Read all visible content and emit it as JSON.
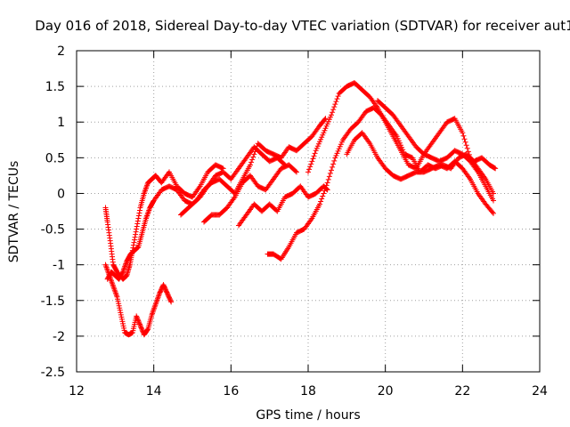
{
  "chart_data": {
    "type": "scatter",
    "title": "Day 016 of 2018, Sidereal Day-to-day VTEC variation (SDTVAR) for receiver aut1",
    "xlabel": "GPS time / hours",
    "ylabel": "SDTVAR / TECUs",
    "xlim": [
      12,
      24
    ],
    "ylim": [
      -2.5,
      2
    ],
    "xticks": [
      "12",
      "14",
      "16",
      "18",
      "20",
      "22",
      "24"
    ],
    "yticks": [
      "2",
      "1.5",
      "1",
      "0.5",
      "0",
      "-0.5",
      "-1",
      "-1.5",
      "-2",
      "-2.5"
    ],
    "grid": true,
    "legend": "none",
    "marker": "+",
    "color": "#ff0000",
    "series": [
      {
        "name": "satellite track A",
        "x": [
          12.75,
          12.8,
          12.88,
          12.95,
          13.05,
          13.2,
          13.3,
          13.38,
          13.45,
          13.55,
          13.65,
          13.75,
          13.85,
          13.95,
          14.05,
          14.2,
          14.4,
          14.6,
          14.8,
          15.0,
          15.2,
          15.4,
          15.6,
          15.8
        ],
        "y": [
          -0.2,
          -0.4,
          -0.7,
          -1.0,
          -1.1,
          -1.2,
          -1.15,
          -1.0,
          -0.8,
          -0.5,
          -0.2,
          0.0,
          0.15,
          0.2,
          0.25,
          0.15,
          0.3,
          0.1,
          0.0,
          -0.05,
          0.1,
          0.3,
          0.4,
          0.35
        ]
      },
      {
        "name": "satellite track B",
        "x": [
          12.75,
          12.85,
          12.95,
          13.05,
          13.15,
          13.25,
          13.35,
          13.45,
          13.55,
          13.65,
          13.75,
          13.85,
          13.95,
          14.05,
          14.15,
          14.25,
          14.35,
          14.45
        ],
        "y": [
          -1.0,
          -1.15,
          -1.3,
          -1.45,
          -1.7,
          -1.95,
          -1.98,
          -1.95,
          -1.72,
          -1.85,
          -1.98,
          -1.9,
          -1.7,
          -1.55,
          -1.4,
          -1.28,
          -1.4,
          -1.52
        ]
      },
      {
        "name": "satellite track C",
        "x": [
          12.8,
          12.9,
          13.0,
          13.1,
          13.2,
          13.3,
          13.4,
          13.5,
          13.6,
          13.7,
          13.8,
          13.9,
          14.0,
          14.2,
          14.4,
          14.6,
          14.8,
          15.0,
          15.2,
          15.4,
          15.6,
          15.8,
          16.0,
          16.2,
          16.4,
          16.6,
          16.8,
          17.0,
          17.2,
          17.4
        ],
        "y": [
          -1.2,
          -1.1,
          -1.15,
          -1.2,
          -1.1,
          -0.95,
          -0.85,
          -0.8,
          -0.75,
          -0.55,
          -0.35,
          -0.2,
          -0.1,
          0.05,
          0.1,
          0.05,
          -0.1,
          -0.15,
          -0.05,
          0.1,
          0.25,
          0.3,
          0.2,
          0.35,
          0.5,
          0.65,
          0.55,
          0.45,
          0.5,
          0.4
        ]
      },
      {
        "name": "satellite track D",
        "x": [
          14.7,
          14.9,
          15.1,
          15.3,
          15.5,
          15.7,
          15.9,
          16.1,
          16.3,
          16.5,
          16.7,
          16.9,
          17.1,
          17.3,
          17.5,
          17.7,
          17.9,
          18.1,
          18.3,
          18.45
        ],
        "y": [
          -0.3,
          -0.2,
          -0.1,
          0.05,
          0.15,
          0.2,
          0.1,
          0.0,
          0.2,
          0.4,
          0.7,
          0.6,
          0.55,
          0.5,
          0.65,
          0.6,
          0.7,
          0.8,
          0.95,
          1.05
        ]
      },
      {
        "name": "satellite track E",
        "x": [
          15.3,
          15.5,
          15.7,
          15.9,
          16.1,
          16.3,
          16.5,
          16.7,
          16.9,
          17.1,
          17.3,
          17.5,
          17.7
        ],
        "y": [
          -0.4,
          -0.3,
          -0.3,
          -0.2,
          -0.05,
          0.15,
          0.25,
          0.1,
          0.05,
          0.2,
          0.35,
          0.4,
          0.3
        ]
      },
      {
        "name": "satellite track F",
        "x": [
          16.2,
          16.4,
          16.6,
          16.8,
          17.0,
          17.2,
          17.4,
          17.6,
          17.8,
          18.0,
          18.2,
          18.4,
          18.5
        ],
        "y": [
          -0.45,
          -0.3,
          -0.15,
          -0.25,
          -0.15,
          -0.25,
          -0.05,
          0.0,
          0.1,
          -0.05,
          0.0,
          0.1,
          0.05
        ]
      },
      {
        "name": "satellite track G",
        "x": [
          16.95,
          17.1,
          17.3,
          17.5,
          17.7,
          17.9,
          18.1,
          18.3,
          18.5,
          18.7,
          18.9,
          19.1,
          19.3,
          19.5,
          19.7,
          19.9,
          20.1,
          20.3,
          20.5,
          20.7,
          20.9,
          21.1,
          21.3,
          21.5,
          21.7,
          21.9,
          22.1,
          22.3,
          22.5,
          22.7,
          22.85
        ],
        "y": [
          -0.85,
          -0.85,
          -0.92,
          -0.75,
          -0.55,
          -0.5,
          -0.35,
          -0.15,
          0.15,
          0.5,
          0.75,
          0.9,
          1.0,
          1.15,
          1.2,
          1.1,
          0.95,
          0.8,
          0.55,
          0.5,
          0.3,
          0.4,
          0.35,
          0.4,
          0.35,
          0.5,
          0.55,
          0.45,
          0.5,
          0.4,
          0.35
        ]
      },
      {
        "name": "satellite track H",
        "x": [
          18.0,
          18.2,
          18.4,
          18.6,
          18.8,
          19.0,
          19.2,
          19.4,
          19.6,
          19.8,
          20.0,
          20.2,
          20.4,
          20.6,
          20.8,
          21.0,
          21.2,
          21.4,
          21.6,
          21.8,
          22.0,
          22.2,
          22.4,
          22.6,
          22.8
        ],
        "y": [
          0.3,
          0.6,
          0.85,
          1.1,
          1.4,
          1.5,
          1.55,
          1.45,
          1.35,
          1.2,
          1.0,
          0.8,
          0.6,
          0.4,
          0.35,
          0.55,
          0.7,
          0.85,
          1.0,
          1.05,
          0.85,
          0.5,
          0.35,
          0.2,
          0.0
        ]
      },
      {
        "name": "satellite track I",
        "x": [
          19.0,
          19.2,
          19.4,
          19.6,
          19.8,
          20.0,
          20.2,
          20.4,
          20.6,
          20.8,
          21.0,
          21.2,
          21.4,
          21.6,
          21.8,
          22.0,
          22.2,
          22.4,
          22.6,
          22.8
        ],
        "y": [
          0.55,
          0.75,
          0.85,
          0.7,
          0.5,
          0.35,
          0.25,
          0.2,
          0.25,
          0.3,
          0.3,
          0.35,
          0.4,
          0.35,
          0.45,
          0.35,
          0.2,
          0.0,
          -0.15,
          -0.28
        ]
      },
      {
        "name": "satellite track J",
        "x": [
          19.8,
          20.0,
          20.2,
          20.4,
          20.6,
          20.8,
          21.0,
          21.2,
          21.4,
          21.6,
          21.8,
          22.0,
          22.2,
          22.4,
          22.6,
          22.8
        ],
        "y": [
          1.3,
          1.2,
          1.1,
          0.95,
          0.8,
          0.65,
          0.55,
          0.5,
          0.45,
          0.5,
          0.6,
          0.55,
          0.45,
          0.3,
          0.1,
          -0.1
        ]
      }
    ]
  }
}
